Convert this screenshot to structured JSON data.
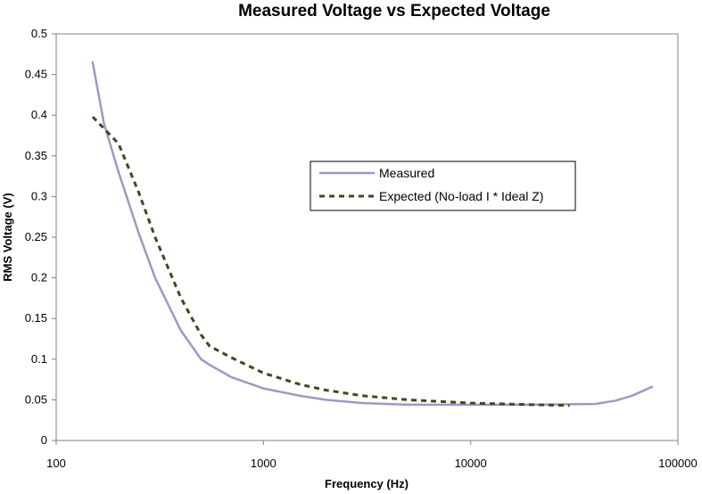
{
  "chart_data": {
    "type": "line",
    "title": "Measured Voltage vs Expected Voltage",
    "xlabel": "Frequency (Hz)",
    "ylabel": "RMS Voltage (V)",
    "xscale": "log",
    "xlim": [
      100,
      100000
    ],
    "ylim": [
      0,
      0.5
    ],
    "x_ticks": [
      100,
      1000,
      10000,
      100000
    ],
    "x_tick_labels": [
      "100",
      "1000",
      "10000",
      "100000"
    ],
    "y_ticks": [
      0,
      0.05,
      0.1,
      0.15,
      0.2,
      0.25,
      0.3,
      0.35,
      0.4,
      0.45,
      0.5
    ],
    "y_tick_labels": [
      "0",
      "0.05",
      "0.1",
      "0.15",
      "0.2",
      "0.25",
      "0.3",
      "0.35",
      "0.4",
      "0.45",
      "0.5"
    ],
    "grid": false,
    "legend_position": "center-right",
    "series": [
      {
        "name": "Measured",
        "color": "#9a9ac4",
        "style": "solid",
        "x": [
          150,
          170,
          200,
          250,
          300,
          400,
          500,
          550,
          700,
          1000,
          1500,
          2000,
          3000,
          5000,
          10000,
          20000,
          40000,
          50000,
          60000,
          75000
        ],
        "y": [
          0.465,
          0.39,
          0.33,
          0.255,
          0.2,
          0.135,
          0.1,
          0.093,
          0.078,
          0.064,
          0.055,
          0.05,
          0.046,
          0.044,
          0.044,
          0.044,
          0.045,
          0.049,
          0.055,
          0.066
        ]
      },
      {
        "name": "Expected (No-load I * Ideal Z)",
        "color": "#3a4a23",
        "style": "dashed",
        "x": [
          150,
          200,
          250,
          300,
          400,
          500,
          550,
          700,
          1000,
          1500,
          2000,
          3000,
          5000,
          10000,
          20000,
          30000
        ],
        "y": [
          0.398,
          0.365,
          0.305,
          0.25,
          0.175,
          0.13,
          0.116,
          0.102,
          0.083,
          0.069,
          0.062,
          0.055,
          0.05,
          0.046,
          0.044,
          0.043
        ]
      }
    ]
  }
}
